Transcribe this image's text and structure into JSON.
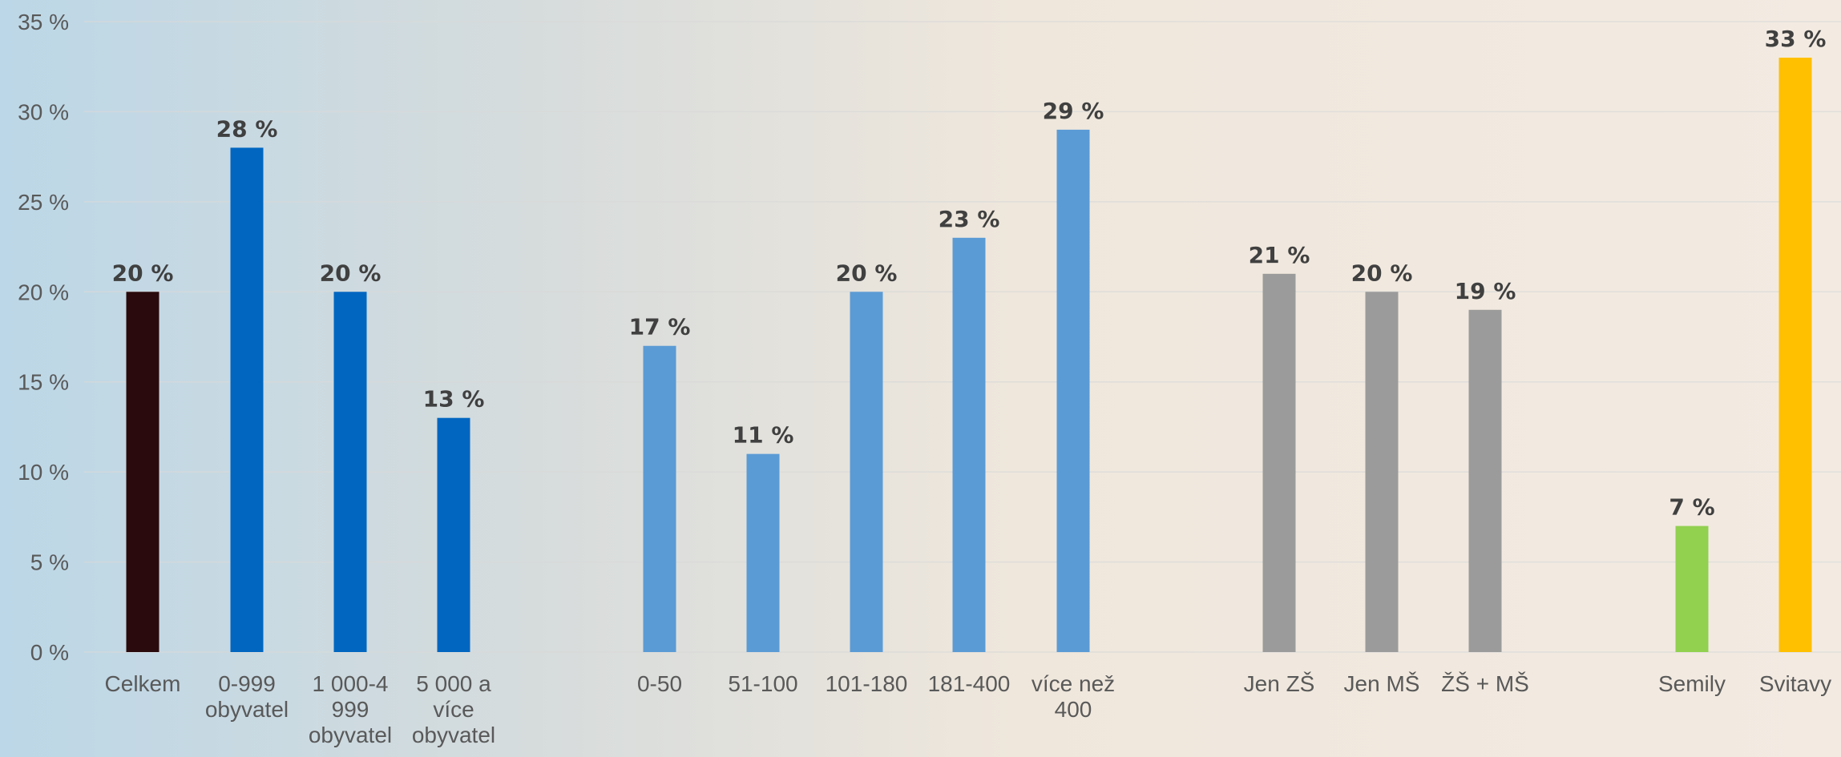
{
  "chart_data": {
    "type": "bar",
    "categories": [
      "Celkem",
      "0-999 obyvatel",
      "1 000-4 999 obyvatel",
      "5 000 a více obyvatel",
      "0-50",
      "51-100",
      "101-180",
      "181-400",
      "více než 400",
      "Jen ZŠ",
      "Jen MŠ",
      "ŽŠ + MŠ",
      "Semily",
      "Svitavy"
    ],
    "category_lines": [
      [
        "Celkem"
      ],
      [
        "0-999",
        "obyvatel"
      ],
      [
        "1 000-4",
        "999",
        "obyvatel"
      ],
      [
        "5 000 a",
        "více",
        "obyvatel"
      ],
      [
        "0-50"
      ],
      [
        "51-100"
      ],
      [
        "101-180"
      ],
      [
        "181-400"
      ],
      [
        "více než",
        "400"
      ],
      [
        "Jen ZŠ"
      ],
      [
        "Jen MŠ"
      ],
      [
        "ŽŠ + MŠ"
      ],
      [
        "Semily"
      ],
      [
        "Svitavy"
      ]
    ],
    "values": [
      20,
      28,
      20,
      13,
      17,
      11,
      20,
      23,
      29,
      21,
      20,
      19,
      7,
      33
    ],
    "value_labels": [
      "20 %",
      "28 %",
      "20 %",
      "13 %",
      "17 %",
      "11 %",
      "20 %",
      "23 %",
      "29 %",
      "21 %",
      "20 %",
      "19 %",
      "7 %",
      "33 %"
    ],
    "colors": [
      "#2a0a0c",
      "#0066c0",
      "#0066c0",
      "#0066c0",
      "#5b9bd5",
      "#5b9bd5",
      "#5b9bd5",
      "#5b9bd5",
      "#5b9bd5",
      "#9b9b9b",
      "#9b9b9b",
      "#9b9b9b",
      "#92d050",
      "#ffc000"
    ],
    "ylim": [
      0,
      35
    ],
    "yticks": [
      "0 %",
      "5 %",
      "10 %",
      "15 %",
      "20 %",
      "25 %",
      "30 %",
      "35 %"
    ],
    "ytick_values": [
      0,
      5,
      10,
      15,
      20,
      25,
      30,
      35
    ],
    "grid": true,
    "legend": "none",
    "title": "",
    "xlabel": "",
    "ylabel": ""
  }
}
